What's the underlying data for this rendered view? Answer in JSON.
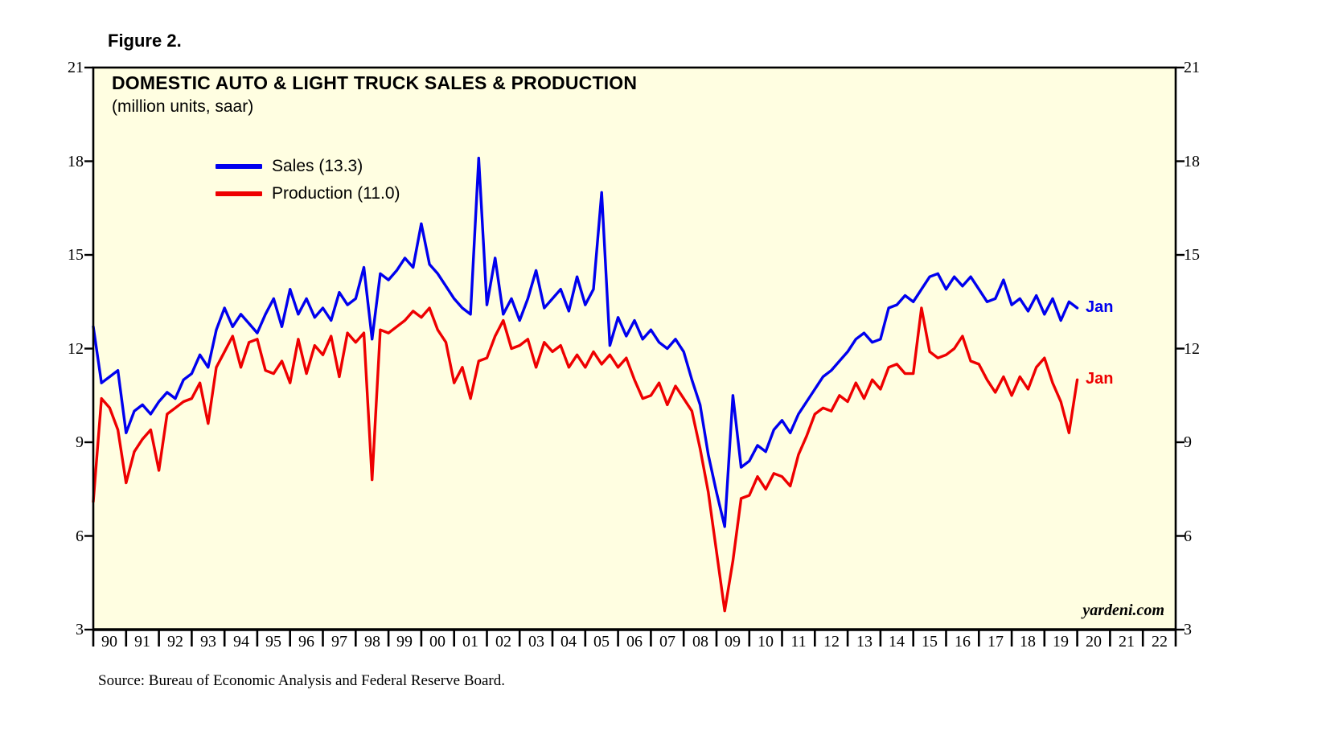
{
  "figure": {
    "label": "Figure 2."
  },
  "chart": {
    "title": "DOMESTIC AUTO & LIGHT TRUCK SALES & PRODUCTION",
    "subtitle": "(million units, saar)",
    "watermark": "yardeni.com",
    "legend": [
      {
        "label": "Sales (13.3)",
        "color": "#0000ee"
      },
      {
        "label": "Production (11.0)",
        "color": "#ee0000"
      }
    ],
    "end_labels": [
      {
        "text": "Jan",
        "color": "#0000ee",
        "value": 13.3
      },
      {
        "text": "Jan",
        "color": "#ee0000",
        "value": 11.0
      }
    ]
  },
  "source": "Source: Bureau of Economic Analysis and Federal Reserve Board.",
  "chart_data": {
    "type": "line",
    "title": "DOMESTIC AUTO & LIGHT TRUCK SALES & PRODUCTION",
    "subtitle": "(million units, saar)",
    "units": "million units, saar",
    "background": "#fffee1",
    "x_start": 1990.0,
    "x_step": 0.25,
    "x_axis": {
      "min": 1990,
      "max": 2023,
      "labels": [
        "90",
        "91",
        "92",
        "93",
        "94",
        "95",
        "96",
        "97",
        "98",
        "99",
        "00",
        "01",
        "02",
        "03",
        "04",
        "05",
        "06",
        "07",
        "08",
        "09",
        "10",
        "11",
        "12",
        "13",
        "14",
        "15",
        "16",
        "17",
        "18",
        "19",
        "20",
        "21",
        "22"
      ]
    },
    "y_axis": {
      "min": 3,
      "max": 21,
      "ticks": [
        3,
        6,
        9,
        12,
        15,
        18,
        21
      ],
      "sides": "both",
      "ylabel": ""
    },
    "series": [
      {
        "name": "Sales",
        "latest_label": "Jan",
        "latest_value": 13.3,
        "color": "#0000ee",
        "values": [
          12.7,
          10.9,
          11.1,
          11.3,
          9.3,
          10.0,
          10.2,
          9.9,
          10.3,
          10.6,
          10.4,
          11.0,
          11.2,
          11.8,
          11.4,
          12.6,
          13.3,
          12.7,
          13.1,
          12.8,
          12.5,
          13.1,
          13.6,
          12.7,
          13.9,
          13.1,
          13.6,
          13.0,
          13.3,
          12.9,
          13.8,
          13.4,
          13.6,
          14.6,
          12.3,
          14.4,
          14.2,
          14.5,
          14.9,
          14.6,
          16.0,
          14.7,
          14.4,
          14.0,
          13.6,
          13.3,
          13.1,
          18.1,
          13.4,
          14.9,
          13.1,
          13.6,
          12.9,
          13.6,
          14.5,
          13.3,
          13.6,
          13.9,
          13.2,
          14.3,
          13.4,
          13.9,
          17.0,
          12.1,
          13.0,
          12.4,
          12.9,
          12.3,
          12.6,
          12.2,
          12.0,
          12.3,
          11.9,
          11.0,
          10.2,
          8.6,
          7.4,
          6.3,
          10.5,
          8.2,
          8.4,
          8.9,
          8.7,
          9.4,
          9.7,
          9.3,
          9.9,
          10.3,
          10.7,
          11.1,
          11.3,
          11.6,
          11.9,
          12.3,
          12.5,
          12.2,
          12.3,
          13.3,
          13.4,
          13.7,
          13.5,
          13.9,
          14.3,
          14.4,
          13.9,
          14.3,
          14.0,
          14.3,
          13.9,
          13.5,
          13.6,
          14.2,
          13.4,
          13.6,
          13.2,
          13.7,
          13.1,
          13.6,
          12.9,
          13.5,
          13.3
        ]
      },
      {
        "name": "Production",
        "latest_label": "Jan",
        "latest_value": 11.0,
        "color": "#ee0000",
        "values": [
          7.1,
          10.4,
          10.1,
          9.4,
          7.7,
          8.7,
          9.1,
          9.4,
          8.1,
          9.9,
          10.1,
          10.3,
          10.4,
          10.9,
          9.6,
          11.4,
          11.9,
          12.4,
          11.4,
          12.2,
          12.3,
          11.3,
          11.2,
          11.6,
          10.9,
          12.3,
          11.2,
          12.1,
          11.8,
          12.4,
          11.1,
          12.5,
          12.2,
          12.5,
          7.8,
          12.6,
          12.5,
          12.7,
          12.9,
          13.2,
          13.0,
          13.3,
          12.6,
          12.2,
          10.9,
          11.4,
          10.4,
          11.6,
          11.7,
          12.4,
          12.9,
          12.0,
          12.1,
          12.3,
          11.4,
          12.2,
          11.9,
          12.1,
          11.4,
          11.8,
          11.4,
          11.9,
          11.5,
          11.8,
          11.4,
          11.7,
          11.0,
          10.4,
          10.5,
          10.9,
          10.2,
          10.8,
          10.4,
          10.0,
          8.8,
          7.4,
          5.5,
          3.6,
          5.2,
          7.2,
          7.3,
          7.9,
          7.5,
          8.0,
          7.9,
          7.6,
          8.6,
          9.2,
          9.9,
          10.1,
          10.0,
          10.5,
          10.3,
          10.9,
          10.4,
          11.0,
          10.7,
          11.4,
          11.5,
          11.2,
          11.2,
          13.3,
          11.9,
          11.7,
          11.8,
          12.0,
          12.4,
          11.6,
          11.5,
          11.0,
          10.6,
          11.1,
          10.5,
          11.1,
          10.7,
          11.4,
          11.7,
          10.9,
          10.3,
          9.3,
          11.0
        ]
      }
    ]
  }
}
